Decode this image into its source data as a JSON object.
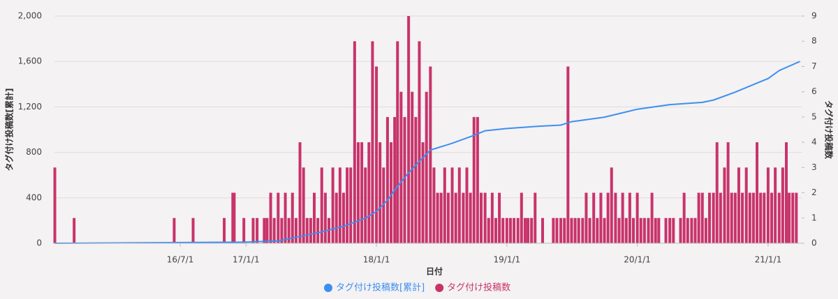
{
  "chart_data": {
    "type": "bar-line",
    "xlabel": "日付",
    "ylabel": "タグ付け投稿数[累計]",
    "y2label": "タグ付け投稿数",
    "xlim": [
      "2015-07-15",
      "2021-04-05"
    ],
    "xticks": [
      {
        "value": "2016-07-01",
        "label": "16/7/1"
      },
      {
        "value": "2017-01-01",
        "label": "17/1/1"
      },
      {
        "value": "2018-01-01",
        "label": "18/1/1"
      },
      {
        "value": "2019-01-01",
        "label": "19/1/1"
      },
      {
        "value": "2020-01-01",
        "label": "20/1/1"
      },
      {
        "value": "2021-01-01",
        "label": "21/1/1"
      }
    ],
    "ylim": [
      0,
      2000
    ],
    "yticks": [
      0,
      400,
      800,
      {
        "value": 1200,
        "label": "1,200"
      },
      {
        "value": 1600,
        "label": "1,600"
      },
      {
        "value": 2000,
        "label": "2,000"
      }
    ],
    "y2lim": [
      0,
      9
    ],
    "y2ticks": [
      0,
      1,
      2,
      3,
      4,
      5,
      6,
      7,
      8,
      9
    ],
    "grid": true,
    "legend": "bottom",
    "series": [
      {
        "name": "タグ付け投稿数[累計]",
        "color": "#3d8ef0",
        "type": "line",
        "x": [
          "2015-07-15",
          "2016-12-31",
          "2017-04-01",
          "2017-06-01",
          "2017-08-01",
          "2017-10-01",
          "2017-12-01",
          "2018-01-01",
          "2018-02-01",
          "2018-03-01",
          "2018-04-01",
          "2018-05-01",
          "2018-06-01",
          "2018-08-01",
          "2018-10-01",
          "2018-11-01",
          "2019-01-01",
          "2019-04-01",
          "2019-06-01",
          "2019-07-01",
          "2019-10-01",
          "2020-01-01",
          "2020-04-01",
          "2020-07-01",
          "2020-08-01",
          "2020-10-01",
          "2020-12-01",
          "2021-01-01",
          "2021-02-01",
          "2021-03-31"
        ],
        "values": [
          0,
          10,
          20,
          60,
          100,
          150,
          220,
          280,
          380,
          500,
          620,
          720,
          820,
          880,
          950,
          990,
          1010,
          1030,
          1040,
          1070,
          1110,
          1180,
          1220,
          1240,
          1260,
          1330,
          1410,
          1450,
          1520,
          1600
        ]
      },
      {
        "name": "タグ付け投稿数",
        "color": "#c8336a",
        "type": "bar",
        "axis": "y2",
        "x": [
          "2015-07-16",
          "2015-09-08",
          "2016-06-14",
          "2016-08-06",
          "2016-11-01",
          "2016-11-25",
          "2016-11-29",
          "2016-12-26",
          "2017-01-21",
          "2017-02-01",
          "2017-02-21",
          "2017-03-01",
          "2017-03-11",
          "2017-03-21",
          "2017-04-01",
          "2017-04-11",
          "2017-04-21",
          "2017-05-01",
          "2017-05-11",
          "2017-05-21",
          "2017-06-01",
          "2017-06-11",
          "2017-06-21",
          "2017-07-01",
          "2017-07-11",
          "2017-07-21",
          "2017-08-01",
          "2017-08-11",
          "2017-08-21",
          "2017-09-01",
          "2017-09-11",
          "2017-09-21",
          "2017-10-01",
          "2017-10-11",
          "2017-10-21",
          "2017-11-01",
          "2017-11-11",
          "2017-11-21",
          "2017-12-01",
          "2017-12-11",
          "2017-12-21",
          "2018-01-01",
          "2018-01-11",
          "2018-01-21",
          "2018-02-01",
          "2018-02-11",
          "2018-02-21",
          "2018-03-01",
          "2018-03-11",
          "2018-03-21",
          "2018-04-01",
          "2018-04-11",
          "2018-04-21",
          "2018-05-01",
          "2018-05-11",
          "2018-05-21",
          "2018-06-01",
          "2018-06-11",
          "2018-06-21",
          "2018-07-01",
          "2018-07-11",
          "2018-07-21",
          "2018-08-01",
          "2018-08-11",
          "2018-08-21",
          "2018-09-01",
          "2018-09-11",
          "2018-09-21",
          "2018-10-01",
          "2018-10-11",
          "2018-10-21",
          "2018-11-01",
          "2018-11-11",
          "2018-11-21",
          "2018-12-01",
          "2018-12-11",
          "2018-12-21",
          "2019-01-01",
          "2019-01-11",
          "2019-01-21",
          "2019-02-01",
          "2019-02-11",
          "2019-02-21",
          "2019-03-01",
          "2019-03-11",
          "2019-03-21",
          "2019-04-11",
          "2019-05-11",
          "2019-05-21",
          "2019-06-01",
          "2019-06-11",
          "2019-06-21",
          "2019-07-01",
          "2019-07-11",
          "2019-07-21",
          "2019-08-01",
          "2019-08-11",
          "2019-08-21",
          "2019-09-01",
          "2019-09-11",
          "2019-09-21",
          "2019-10-01",
          "2019-10-11",
          "2019-10-21",
          "2019-11-01",
          "2019-11-11",
          "2019-11-21",
          "2019-12-01",
          "2019-12-11",
          "2019-12-21",
          "2020-01-01",
          "2020-01-11",
          "2020-01-21",
          "2020-02-01",
          "2020-02-11",
          "2020-02-21",
          "2020-03-01",
          "2020-03-21",
          "2020-04-01",
          "2020-04-11",
          "2020-05-01",
          "2020-05-11",
          "2020-05-21",
          "2020-06-01",
          "2020-06-11",
          "2020-06-21",
          "2020-07-01",
          "2020-07-11",
          "2020-07-21",
          "2020-08-01",
          "2020-08-11",
          "2020-08-21",
          "2020-09-01",
          "2020-09-11",
          "2020-09-21",
          "2020-10-01",
          "2020-10-11",
          "2020-10-21",
          "2020-11-01",
          "2020-11-11",
          "2020-11-21",
          "2020-12-01",
          "2020-12-11",
          "2020-12-21",
          "2021-01-01",
          "2021-01-11",
          "2021-01-21",
          "2021-02-01",
          "2021-02-11",
          "2021-02-21",
          "2021-03-01",
          "2021-03-11",
          "2021-03-21"
        ],
        "values": [
          3,
          1,
          1,
          1,
          1,
          2,
          2,
          1,
          1,
          1,
          1,
          1,
          2,
          1,
          2,
          1,
          2,
          1,
          2,
          1,
          4,
          3,
          1,
          1,
          2,
          1,
          3,
          2,
          1,
          3,
          2,
          3,
          2,
          3,
          3,
          8,
          4,
          4,
          3,
          4,
          8,
          7,
          4,
          3,
          5,
          4,
          5,
          8,
          6,
          5,
          9,
          6,
          5,
          8,
          4,
          6,
          7,
          3,
          2,
          2,
          3,
          2,
          3,
          2,
          3,
          2,
          3,
          2,
          5,
          5,
          2,
          2,
          1,
          2,
          1,
          2,
          1,
          1,
          1,
          1,
          1,
          2,
          1,
          1,
          1,
          2,
          1,
          1,
          1,
          1,
          1,
          7,
          1,
          1,
          1,
          1,
          2,
          1,
          2,
          1,
          2,
          1,
          2,
          3,
          2,
          1,
          2,
          1,
          2,
          1,
          2,
          1,
          1,
          1,
          2,
          1,
          1,
          1,
          1,
          1,
          1,
          2,
          1,
          1,
          1,
          2,
          2,
          1,
          2,
          2,
          4,
          2,
          3,
          4,
          2,
          2,
          3,
          2,
          3,
          2,
          2,
          4,
          2,
          2,
          3,
          2,
          3,
          2,
          3,
          4,
          2,
          2,
          2
        ]
      }
    ]
  }
}
